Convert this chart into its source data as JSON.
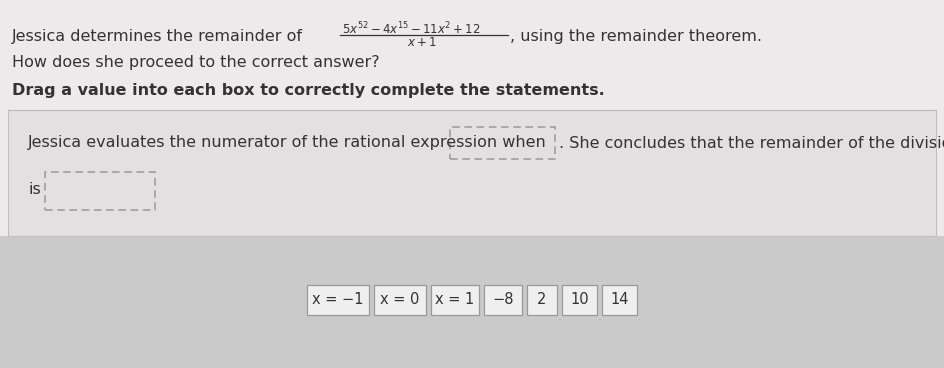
{
  "line1_pre": "Jessica determines the remainder of",
  "line1_post": ", using the remainder theorem.",
  "line2": "How does she proceed to the correct answer?",
  "line3": "Drag a value into each box to correctly complete the statements.",
  "stmt_part1": "Jessica evaluates the numerator of the rational expression when",
  "stmt_part2": ". She concludes that the remainder of the division",
  "stmt_is": "is",
  "drag_values": [
    "x = −1",
    "x = 0",
    "x = 1",
    "−8",
    "2",
    "10",
    "14"
  ],
  "bg_top": "#e8e7e7",
  "bg_card": "#e4e3e3",
  "bg_bottom": "#d0cfcf",
  "text_color": "#333333",
  "box_color": "#999999",
  "btn_bg": "#f0efef",
  "btn_border": "#999999"
}
